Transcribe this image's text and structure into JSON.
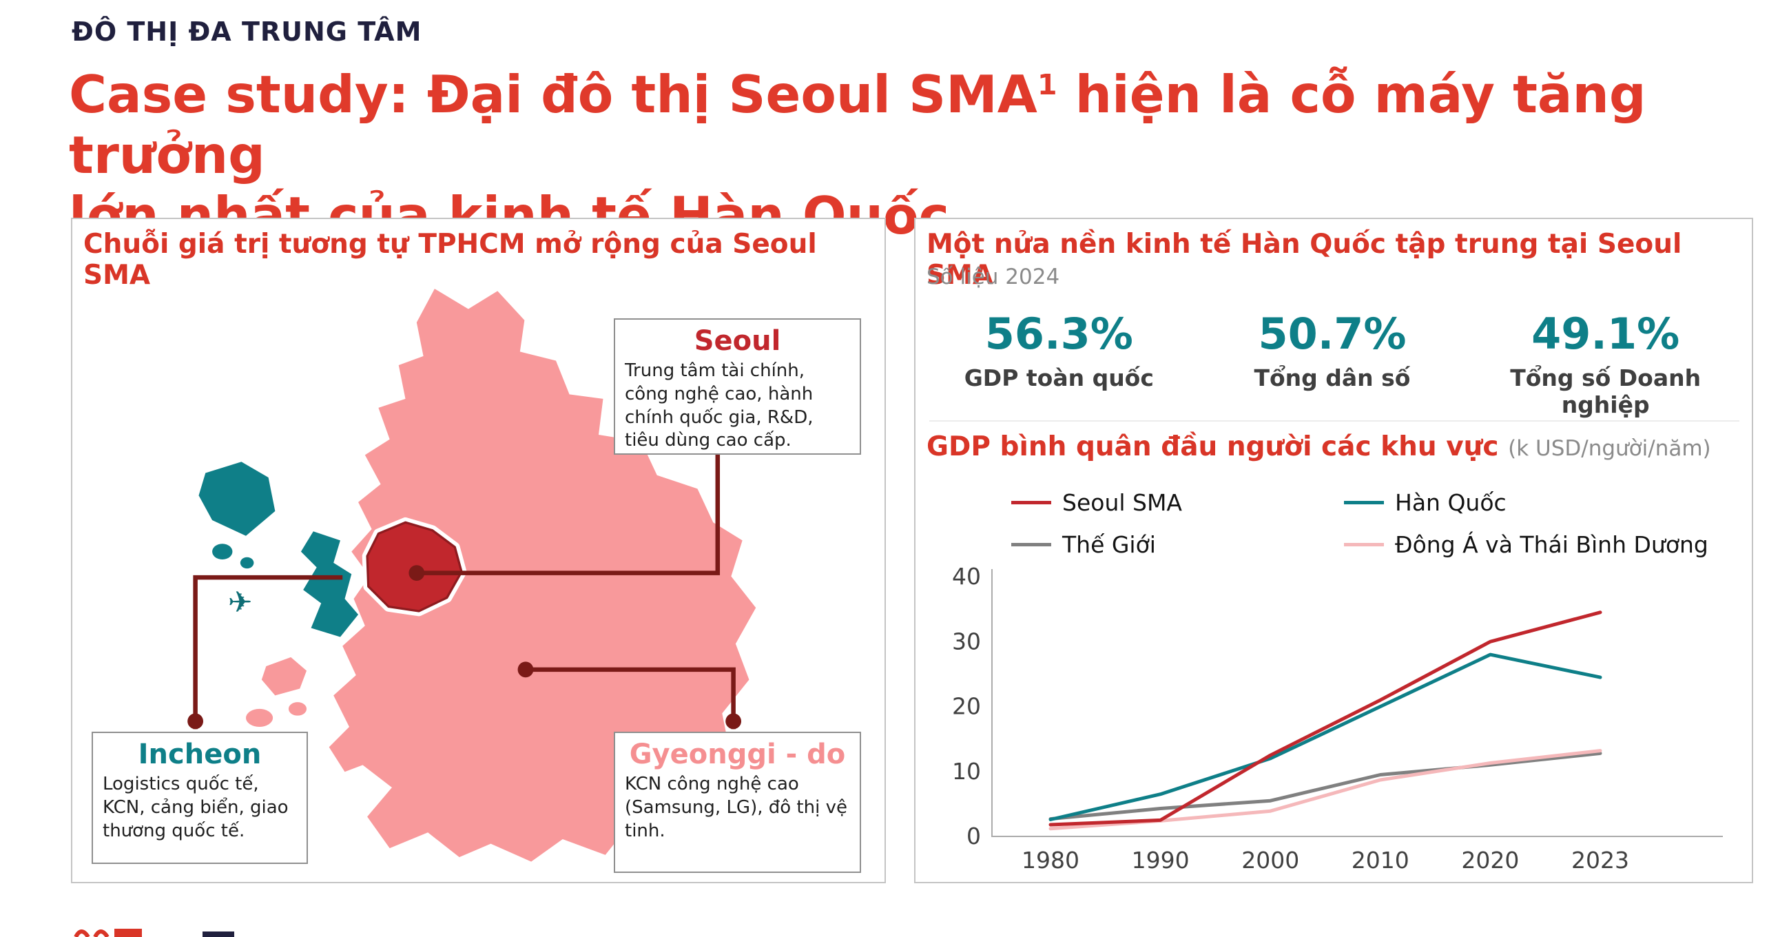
{
  "page": {
    "eyebrow": "ĐÔ THỊ ĐA TRUNG TÂM",
    "title_line1_main": "Case study: Đại đô thị Seoul SMA",
    "title_sup": "1",
    "title_line1_rest": " hiện là cỗ máy tăng trưởng",
    "title_line2": "lớn nhất của kinh tế Hàn Quốc"
  },
  "left_panel": {
    "title": "Chuỗi giá trị tương tự TPHCM mở rộng của Seoul SMA",
    "callouts": {
      "seoul": {
        "title": "Seoul",
        "body": "Trung tâm tài chính, công nghệ cao, hành chính quốc gia, R&D, tiêu dùng cao cấp."
      },
      "incheon": {
        "title": "Incheon",
        "body": "Logistics quốc tế, KCN, cảng biển, giao thương quốc tế."
      },
      "gyeonggi": {
        "title": "Gyeonggi - do",
        "body": "KCN công nghệ cao (Samsung, LG), đô thị vệ tinh."
      }
    }
  },
  "right_panel": {
    "title": "Một nửa nền kinh tế Hàn Quốc tập trung tại Seoul SMA",
    "subtitle": "Số liệu 2024",
    "stats": [
      {
        "value": "56.3%",
        "label": "GDP toàn quốc"
      },
      {
        "value": "50.7%",
        "label": "Tổng dân số"
      },
      {
        "value": "49.1%",
        "label": "Tổng số Doanh nghiệp"
      }
    ],
    "chart_heading": "GDP bình quân đầu người các khu vực",
    "chart_unit": "(k USD/người/năm)"
  },
  "chart_data": {
    "type": "line",
    "title": "GDP bình quân đầu người các khu vực",
    "unit_label": "(k USD/người/năm)",
    "x": [
      1980,
      1990,
      2000,
      2010,
      2020,
      2023
    ],
    "series": [
      {
        "name": "Seoul SMA",
        "color": "#C1272D",
        "values": [
          1.8,
          2.5,
          12.5,
          21.0,
          30.0,
          34.5
        ]
      },
      {
        "name": "Hàn Quốc",
        "color": "#0E7F88",
        "values": [
          2.6,
          6.5,
          12.0,
          20.0,
          28.0,
          24.5
        ]
      },
      {
        "name": "Thế Giới",
        "color": "#808080",
        "values": [
          2.7,
          4.3,
          5.5,
          9.5,
          11.0,
          12.8
        ]
      },
      {
        "name": "Đông Á và Thái Bình Dương",
        "color": "#F5B8BA",
        "values": [
          1.2,
          2.4,
          3.9,
          8.7,
          11.3,
          13.2
        ]
      }
    ],
    "ylim": [
      0,
      40
    ],
    "yticks": [
      0,
      10,
      20,
      30,
      40
    ],
    "grid": false,
    "legend_position": "top"
  },
  "colors": {
    "heading_red": "#E03A2B",
    "panel_heading_red": "#D93527",
    "seoul_red": "#C1272D",
    "maroon_connector": "#7A1A17",
    "teal": "#0E7F88",
    "map_pink": "#F8999B",
    "gyeonggi_pink": "#F58F91",
    "eyebrow_navy": "#20203E",
    "gray_text": "#8A8A8A"
  }
}
